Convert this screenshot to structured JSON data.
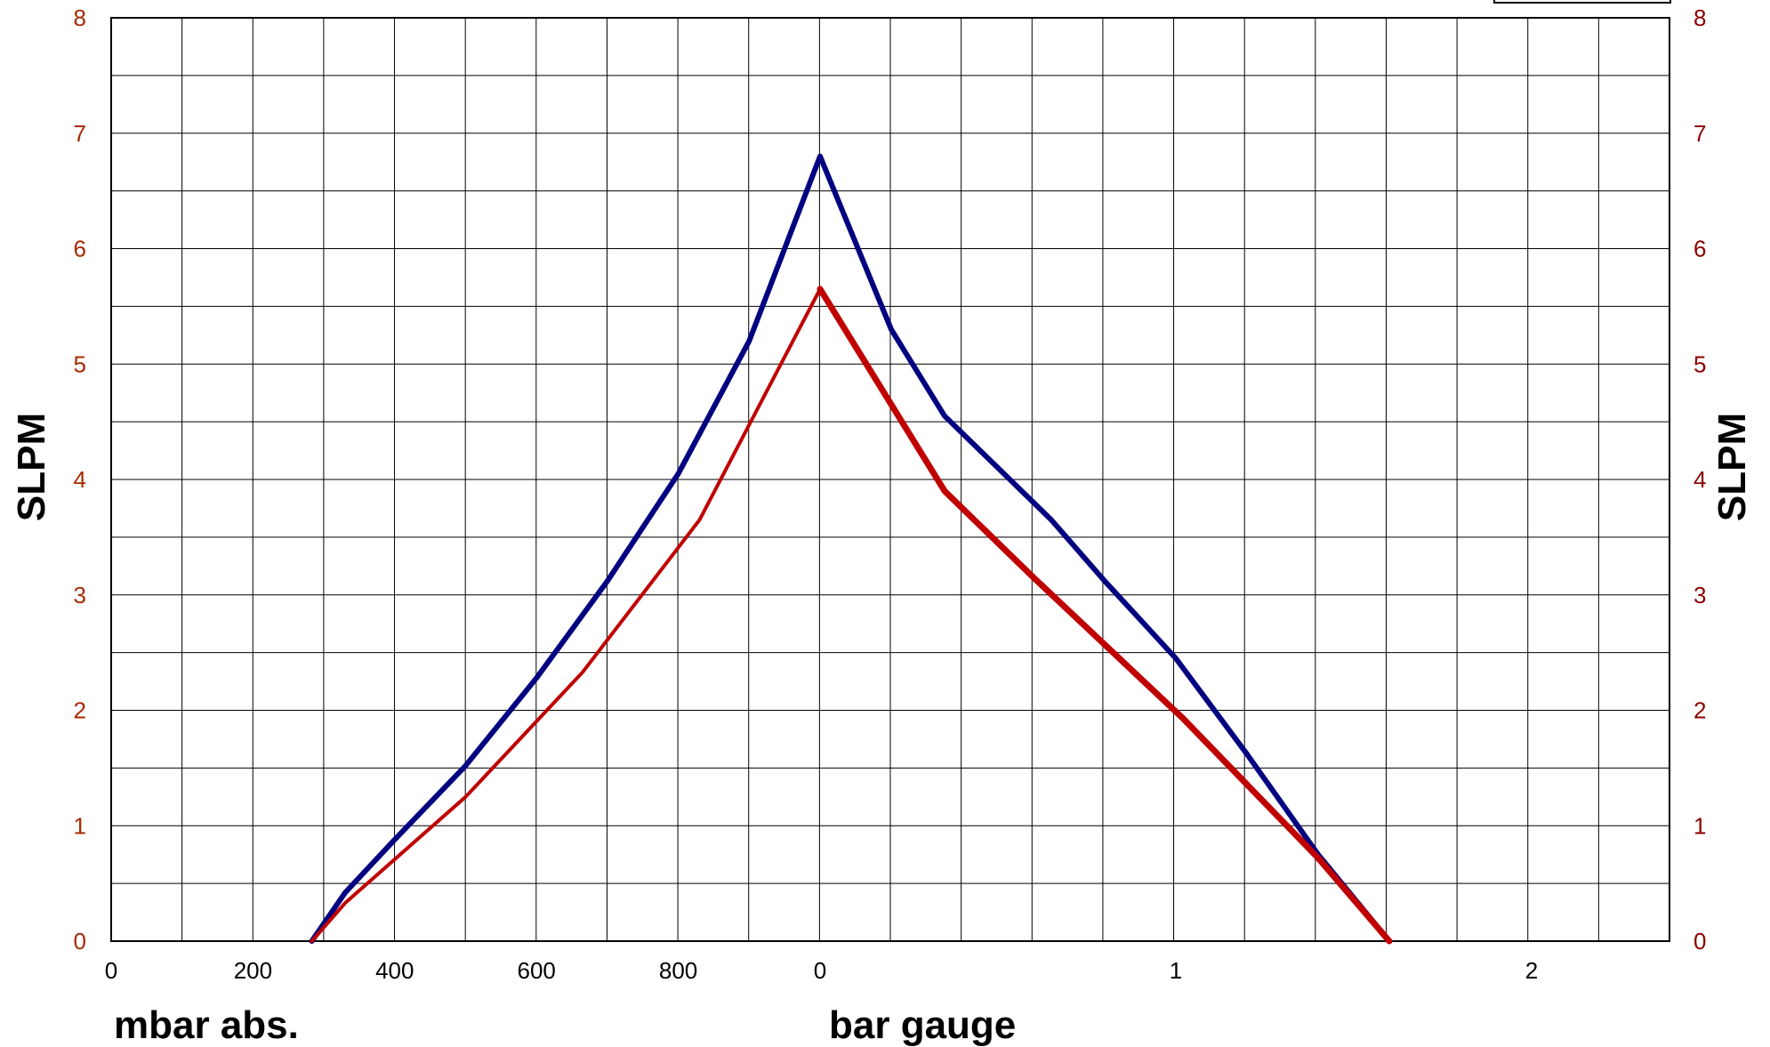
{
  "chart_data": {
    "type": "line",
    "title": "",
    "ylabel_left": "SLPM",
    "ylabel_right": "SLPM",
    "xlabel_left": "mbar abs.",
    "xlabel_right": "bar gauge",
    "ylim": [
      0,
      8
    ],
    "y_ticks": [
      "0",
      "1",
      "2",
      "3",
      "4",
      "5",
      "6",
      "7",
      "8"
    ],
    "x_ticks_vacuum": [
      "0",
      "200",
      "400",
      "600",
      "800"
    ],
    "x_ticks_gauge": [
      "0",
      "1",
      "2"
    ],
    "grid": true,
    "colors": {
      "blue_series": "#000080",
      "red_series": "#c00000",
      "tick_left": "#a52a00",
      "tick_right": "#8b0000",
      "grid": "#000000"
    },
    "series": [
      {
        "color": "blue",
        "points": [
          {
            "scale": "mbar",
            "x": 283,
            "y": 0.0
          },
          {
            "scale": "mbar",
            "x": 330,
            "y": 0.42
          },
          {
            "scale": "mbar",
            "x": 400,
            "y": 0.88
          },
          {
            "scale": "mbar",
            "x": 500,
            "y": 1.52
          },
          {
            "scale": "mbar",
            "x": 600,
            "y": 2.28
          },
          {
            "scale": "mbar",
            "x": 700,
            "y": 3.12
          },
          {
            "scale": "mbar",
            "x": 800,
            "y": 4.05
          },
          {
            "scale": "mbar",
            "x": 900,
            "y": 5.2
          },
          {
            "scale": "bar",
            "x": 0.0,
            "y": 6.8
          },
          {
            "scale": "bar",
            "x": 0.1,
            "y": 6.05
          },
          {
            "scale": "bar",
            "x": 0.2,
            "y": 5.3
          },
          {
            "scale": "bar",
            "x": 0.35,
            "y": 4.55
          },
          {
            "scale": "bar",
            "x": 0.5,
            "y": 4.1
          },
          {
            "scale": "bar",
            "x": 0.65,
            "y": 3.65
          },
          {
            "scale": "bar",
            "x": 0.8,
            "y": 3.12
          },
          {
            "scale": "bar",
            "x": 1.0,
            "y": 2.45
          },
          {
            "scale": "bar",
            "x": 1.2,
            "y": 1.62
          },
          {
            "scale": "bar",
            "x": 1.4,
            "y": 0.75
          },
          {
            "scale": "bar",
            "x": 1.6,
            "y": 0.0
          }
        ]
      },
      {
        "color": "red",
        "points": [
          {
            "scale": "mbar",
            "x": 283,
            "y": 0.0
          },
          {
            "scale": "mbar",
            "x": 330,
            "y": 0.33
          },
          {
            "scale": "mbar",
            "x": 500,
            "y": 1.25
          },
          {
            "scale": "mbar",
            "x": 665,
            "y": 2.33
          },
          {
            "scale": "mbar",
            "x": 830,
            "y": 3.65
          },
          {
            "scale": "bar",
            "x": 0.0,
            "y": 5.65
          },
          {
            "scale": "bar",
            "x": 0.35,
            "y": 3.9
          },
          {
            "scale": "bar",
            "x": 0.6,
            "y": 3.15
          },
          {
            "scale": "bar",
            "x": 1.02,
            "y": 1.93
          },
          {
            "scale": "bar",
            "x": 1.4,
            "y": 0.72
          },
          {
            "scale": "bar",
            "x": 1.6,
            "y": 0.0
          }
        ]
      }
    ]
  }
}
